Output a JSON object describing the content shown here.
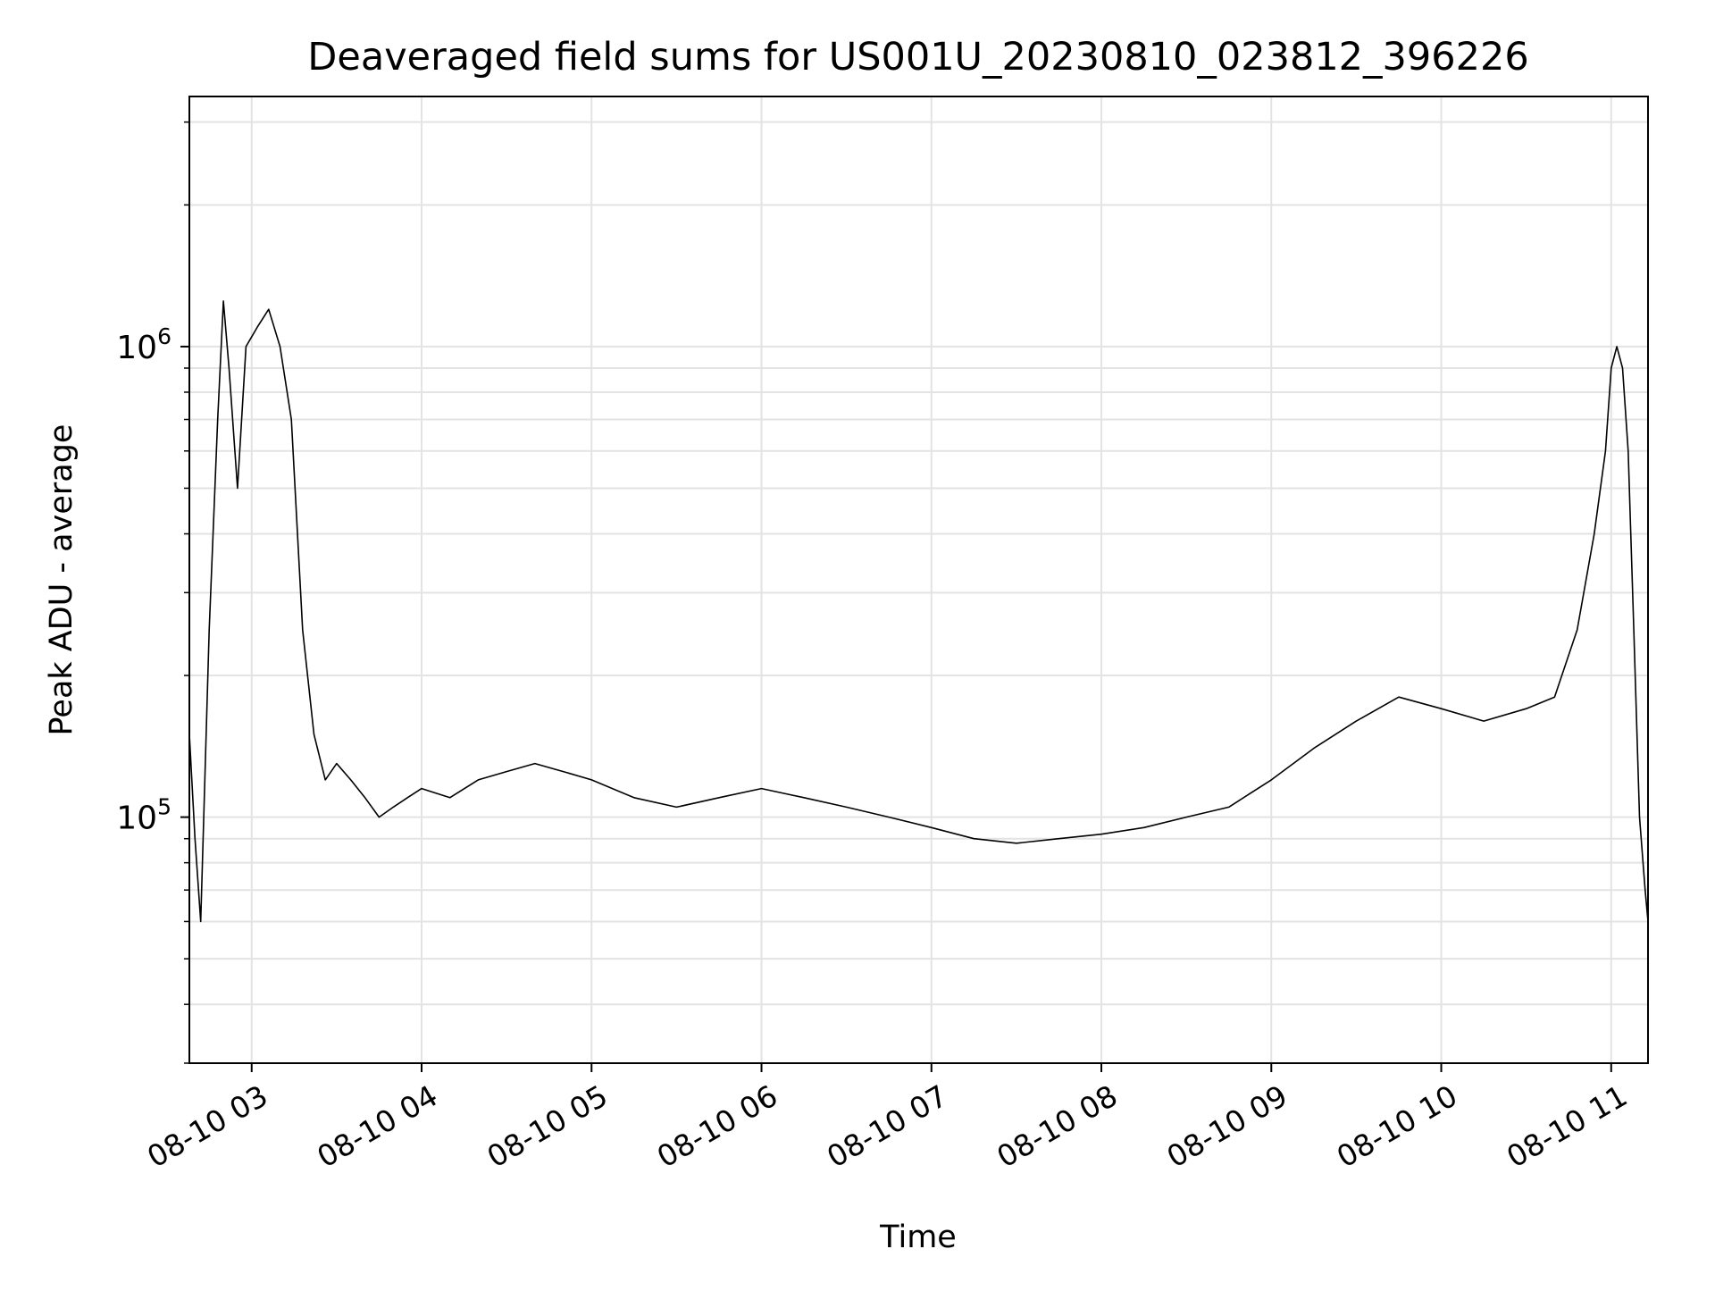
{
  "chart_data": {
    "type": "line",
    "title": "Deaveraged field sums for US001U_20230810_023812_396226",
    "xlabel": "Time",
    "ylabel": "Peak ADU - average",
    "xlim": [
      "2023-08-10 02:38",
      "2023-08-10 11:13"
    ],
    "ylim": [
      30000,
      3400000
    ],
    "y_scale": "log",
    "x_ticks": [
      "08-10 03",
      "08-10 04",
      "08-10 05",
      "08-10 06",
      "08-10 07",
      "08-10 08",
      "08-10 09",
      "08-10 10",
      "08-10 11"
    ],
    "y_ticks": [
      {
        "value": 100000,
        "base": "10",
        "exp": "5"
      },
      {
        "value": 1000000,
        "base": "10",
        "exp": "6"
      }
    ],
    "grid": true,
    "line_color": "#000000",
    "series": [
      {
        "x": [
          "2023-08-10 02:38",
          "2023-08-10 02:40",
          "2023-08-10 02:42",
          "2023-08-10 02:45",
          "2023-08-10 02:48",
          "2023-08-10 02:50",
          "2023-08-10 02:52",
          "2023-08-10 02:55",
          "2023-08-10 02:58",
          "2023-08-10 03:02",
          "2023-08-10 03:06",
          "2023-08-10 03:10",
          "2023-08-10 03:14",
          "2023-08-10 03:18",
          "2023-08-10 03:22",
          "2023-08-10 03:26",
          "2023-08-10 03:30",
          "2023-08-10 03:35",
          "2023-08-10 03:40",
          "2023-08-10 03:45",
          "2023-08-10 03:50",
          "2023-08-10 03:55",
          "2023-08-10 04:00",
          "2023-08-10 04:10",
          "2023-08-10 04:20",
          "2023-08-10 04:30",
          "2023-08-10 04:40",
          "2023-08-10 04:50",
          "2023-08-10 05:00",
          "2023-08-10 05:15",
          "2023-08-10 05:30",
          "2023-08-10 05:45",
          "2023-08-10 06:00",
          "2023-08-10 06:15",
          "2023-08-10 06:30",
          "2023-08-10 06:45",
          "2023-08-10 07:00",
          "2023-08-10 07:15",
          "2023-08-10 07:30",
          "2023-08-10 07:45",
          "2023-08-10 08:00",
          "2023-08-10 08:15",
          "2023-08-10 08:30",
          "2023-08-10 08:45",
          "2023-08-10 09:00",
          "2023-08-10 09:15",
          "2023-08-10 09:30",
          "2023-08-10 09:45",
          "2023-08-10 10:00",
          "2023-08-10 10:15",
          "2023-08-10 10:30",
          "2023-08-10 10:40",
          "2023-08-10 10:48",
          "2023-08-10 10:54",
          "2023-08-10 10:58",
          "2023-08-10 11:00",
          "2023-08-10 11:02",
          "2023-08-10 11:04",
          "2023-08-10 11:06",
          "2023-08-10 11:08",
          "2023-08-10 11:10",
          "2023-08-10 11:12",
          "2023-08-10 11:13"
        ],
        "y": [
          150000,
          90000,
          60000,
          250000,
          700000,
          1250000,
          900000,
          500000,
          1000000,
          1100000,
          1200000,
          1000000,
          700000,
          250000,
          150000,
          120000,
          130000,
          120000,
          110000,
          100000,
          105000,
          110000,
          115000,
          110000,
          120000,
          125000,
          130000,
          125000,
          120000,
          110000,
          105000,
          110000,
          115000,
          110000,
          105000,
          100000,
          95000,
          90000,
          88000,
          90000,
          92000,
          95000,
          100000,
          105000,
          120000,
          140000,
          160000,
          180000,
          170000,
          160000,
          170000,
          180000,
          250000,
          400000,
          600000,
          900000,
          1000000,
          900000,
          600000,
          250000,
          100000,
          70000,
          60000
        ]
      }
    ]
  }
}
